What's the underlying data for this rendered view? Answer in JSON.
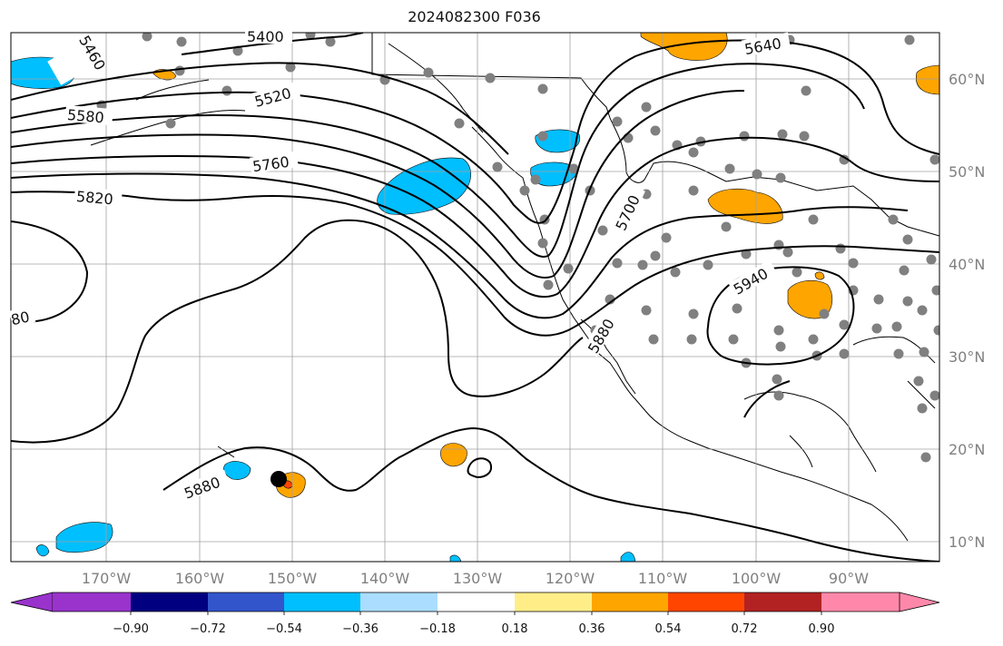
{
  "title": "2024082300 F036",
  "map": {
    "lon_labels": [
      "170°W",
      "160°W",
      "150°W",
      "140°W",
      "130°W",
      "120°W",
      "110°W",
      "100°W",
      "90°W"
    ],
    "lat_labels": [
      "60°N",
      "50°N",
      "40°N",
      "30°N",
      "20°N",
      "10°N"
    ],
    "contour_labels": [
      "5400",
      "5460",
      "5520",
      "5580",
      "5640",
      "5700",
      "5760",
      "5820",
      "5880",
      "5880",
      "5940",
      "80"
    ],
    "colors": {
      "contour": "#000000",
      "grid": "#a0a0a0",
      "coast": "#000000",
      "station_dot": "#808080",
      "storm_marker": "#000000"
    }
  },
  "colorbar": {
    "colors": [
      "#9933cc",
      "#000080",
      "#3355cc",
      "#00bfff",
      "#aaddff",
      "#ffffff",
      "#ffee88",
      "#ffa500",
      "#ff4500",
      "#b22222",
      "#ff88aa"
    ],
    "ticks": [
      "−0.90",
      "−0.72",
      "−0.54",
      "−0.36",
      "−0.18",
      "0.18",
      "0.36",
      "0.54",
      "0.72",
      "0.90"
    ]
  }
}
